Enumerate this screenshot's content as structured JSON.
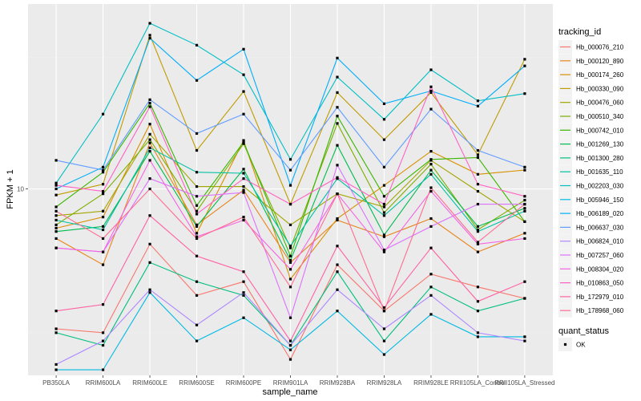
{
  "chart_data": {
    "type": "line",
    "title": "",
    "xlabel": "sample_name",
    "ylabel": "FPKM + 1",
    "y_scale": "log10",
    "y_ticks": [
      10
    ],
    "y_tick_labels": [
      "10"
    ],
    "ylim": [
      2.1,
      47
    ],
    "grid": true,
    "legend_position": "right",
    "categories": [
      "PB350LA",
      "RRIM600LA",
      "RRIM600LE",
      "RRIM600SE",
      "RRIM600PE",
      "RRIM901LA",
      "RRIM928BA",
      "RRIM928LA",
      "RRIM928LE",
      "RRII105LA_Control",
      "RRII105LA_Stressed"
    ],
    "legend": {
      "color_title": "tracking_id",
      "shape_title": "quant_status",
      "shape_items": [
        {
          "label": "OK",
          "shape": "square"
        }
      ]
    },
    "series": [
      {
        "name": "Hb_000076_210",
        "color": "#F8766D",
        "values": [
          3.1,
          3.0,
          6.3,
          4.1,
          4.6,
          2.4,
          5.3,
          3.6,
          4.9,
          4.4,
          4.0
        ]
      },
      {
        "name": "Hb_000120_890",
        "color": "#E7851E",
        "values": [
          6.6,
          5.3,
          14.7,
          7.4,
          9.9,
          5.4,
          7.7,
          6.7,
          7.8,
          5.9,
          6.9
        ]
      },
      {
        "name": "Hb_000174_260",
        "color": "#D89000",
        "values": [
          7.2,
          7.9,
          17.2,
          6.9,
          15.0,
          4.7,
          7.8,
          10.3,
          13.7,
          11.3,
          11.7
        ]
      },
      {
        "name": "Hb_000330_090",
        "color": "#C09B00",
        "values": [
          9.5,
          10.4,
          36.2,
          13.8,
          22.6,
          8.8,
          22.4,
          15.1,
          22.4,
          13.3,
          29.6
        ]
      },
      {
        "name": "Hb_000476_060",
        "color": "#A3A500",
        "values": [
          8.0,
          8.3,
          15.8,
          10.2,
          10.2,
          7.4,
          9.6,
          8.6,
          12.7,
          9.8,
          7.6
        ]
      },
      {
        "name": "Hb_000510_340",
        "color": "#7CAE00",
        "values": [
          7.4,
          9.6,
          15.1,
          8.3,
          14.6,
          6.1,
          17.3,
          8.2,
          12.3,
          7.1,
          9.1
        ]
      },
      {
        "name": "Hb_000742_010",
        "color": "#39B600",
        "values": [
          8.6,
          11.5,
          20.5,
          8.7,
          14.8,
          5.7,
          18.4,
          9.4,
          12.8,
          13.0,
          7.6
        ]
      },
      {
        "name": "Hb_001269_130",
        "color": "#00BB4E",
        "values": [
          7.0,
          7.3,
          13.7,
          7.3,
          11.8,
          5.5,
          14.4,
          6.8,
          11.7,
          7.3,
          8.5
        ]
      },
      {
        "name": "Hb_001300_280",
        "color": "#00BF7D",
        "values": [
          3.0,
          2.7,
          5.4,
          4.6,
          4.1,
          2.7,
          5.0,
          2.8,
          4.4,
          3.6,
          4.0
        ]
      },
      {
        "name": "Hb_001635_110",
        "color": "#00C1A3",
        "values": [
          7.7,
          7.1,
          14.1,
          11.5,
          11.4,
          6.2,
          10.9,
          8.0,
          11.3,
          7.0,
          8.3
        ]
      },
      {
        "name": "Hb_002203_030",
        "color": "#00BFC4",
        "values": [
          10.5,
          18.7,
          40.0,
          33.3,
          26.0,
          12.8,
          25.5,
          17.9,
          27.1,
          20.9,
          22.2
        ]
      },
      {
        "name": "Hb_005946_150",
        "color": "#00B9E3",
        "values": [
          2.2,
          2.2,
          4.2,
          2.8,
          3.4,
          2.6,
          3.6,
          2.5,
          3.5,
          2.9,
          2.9
        ]
      },
      {
        "name": "Hb_006189_020",
        "color": "#00ADFA",
        "values": [
          10.0,
          12.0,
          35.3,
          24.8,
          32.2,
          10.3,
          29.9,
          20.4,
          22.7,
          20.0,
          28.0
        ]
      },
      {
        "name": "Hb_006637_030",
        "color": "#619CFF",
        "values": [
          12.7,
          11.7,
          21.1,
          15.9,
          18.7,
          11.7,
          19.8,
          12.0,
          19.5,
          13.8,
          12.0
        ]
      },
      {
        "name": "Hb_006824_010",
        "color": "#AE87FF",
        "values": [
          2.3,
          2.8,
          4.3,
          3.2,
          4.2,
          2.7,
          4.3,
          3.1,
          4.1,
          3.0,
          2.8
        ]
      },
      {
        "name": "Hb_007257_060",
        "color": "#DB72FB",
        "values": [
          6.1,
          5.9,
          10.9,
          9.4,
          9.7,
          3.4,
          12.2,
          6.0,
          7.3,
          8.8,
          8.8
        ]
      },
      {
        "name": "Hb_008304_020",
        "color": "#F564E3",
        "values": [
          6.1,
          5.9,
          12.7,
          6.7,
          7.7,
          5.1,
          9.6,
          5.9,
          9.8,
          6.3,
          6.6
        ]
      },
      {
        "name": "Hb_010863_050",
        "color": "#FF61C3",
        "values": [
          10.3,
          9.8,
          19.9,
          8.1,
          10.9,
          8.8,
          11.0,
          8.8,
          23.5,
          10.4,
          9.4
        ]
      },
      {
        "name": "Hb_172979_010",
        "color": "#FF62A3",
        "values": [
          3.6,
          3.8,
          8.0,
          5.7,
          5.0,
          2.8,
          6.2,
          3.7,
          6.1,
          3.9,
          4.6
        ]
      },
      {
        "name": "Hb_178968_060",
        "color": "#FF6C91",
        "values": [
          8.3,
          6.6,
          10.0,
          6.6,
          7.9,
          4.4,
          9.6,
          3.6,
          10.1,
          6.4,
          8.8
        ]
      }
    ]
  }
}
